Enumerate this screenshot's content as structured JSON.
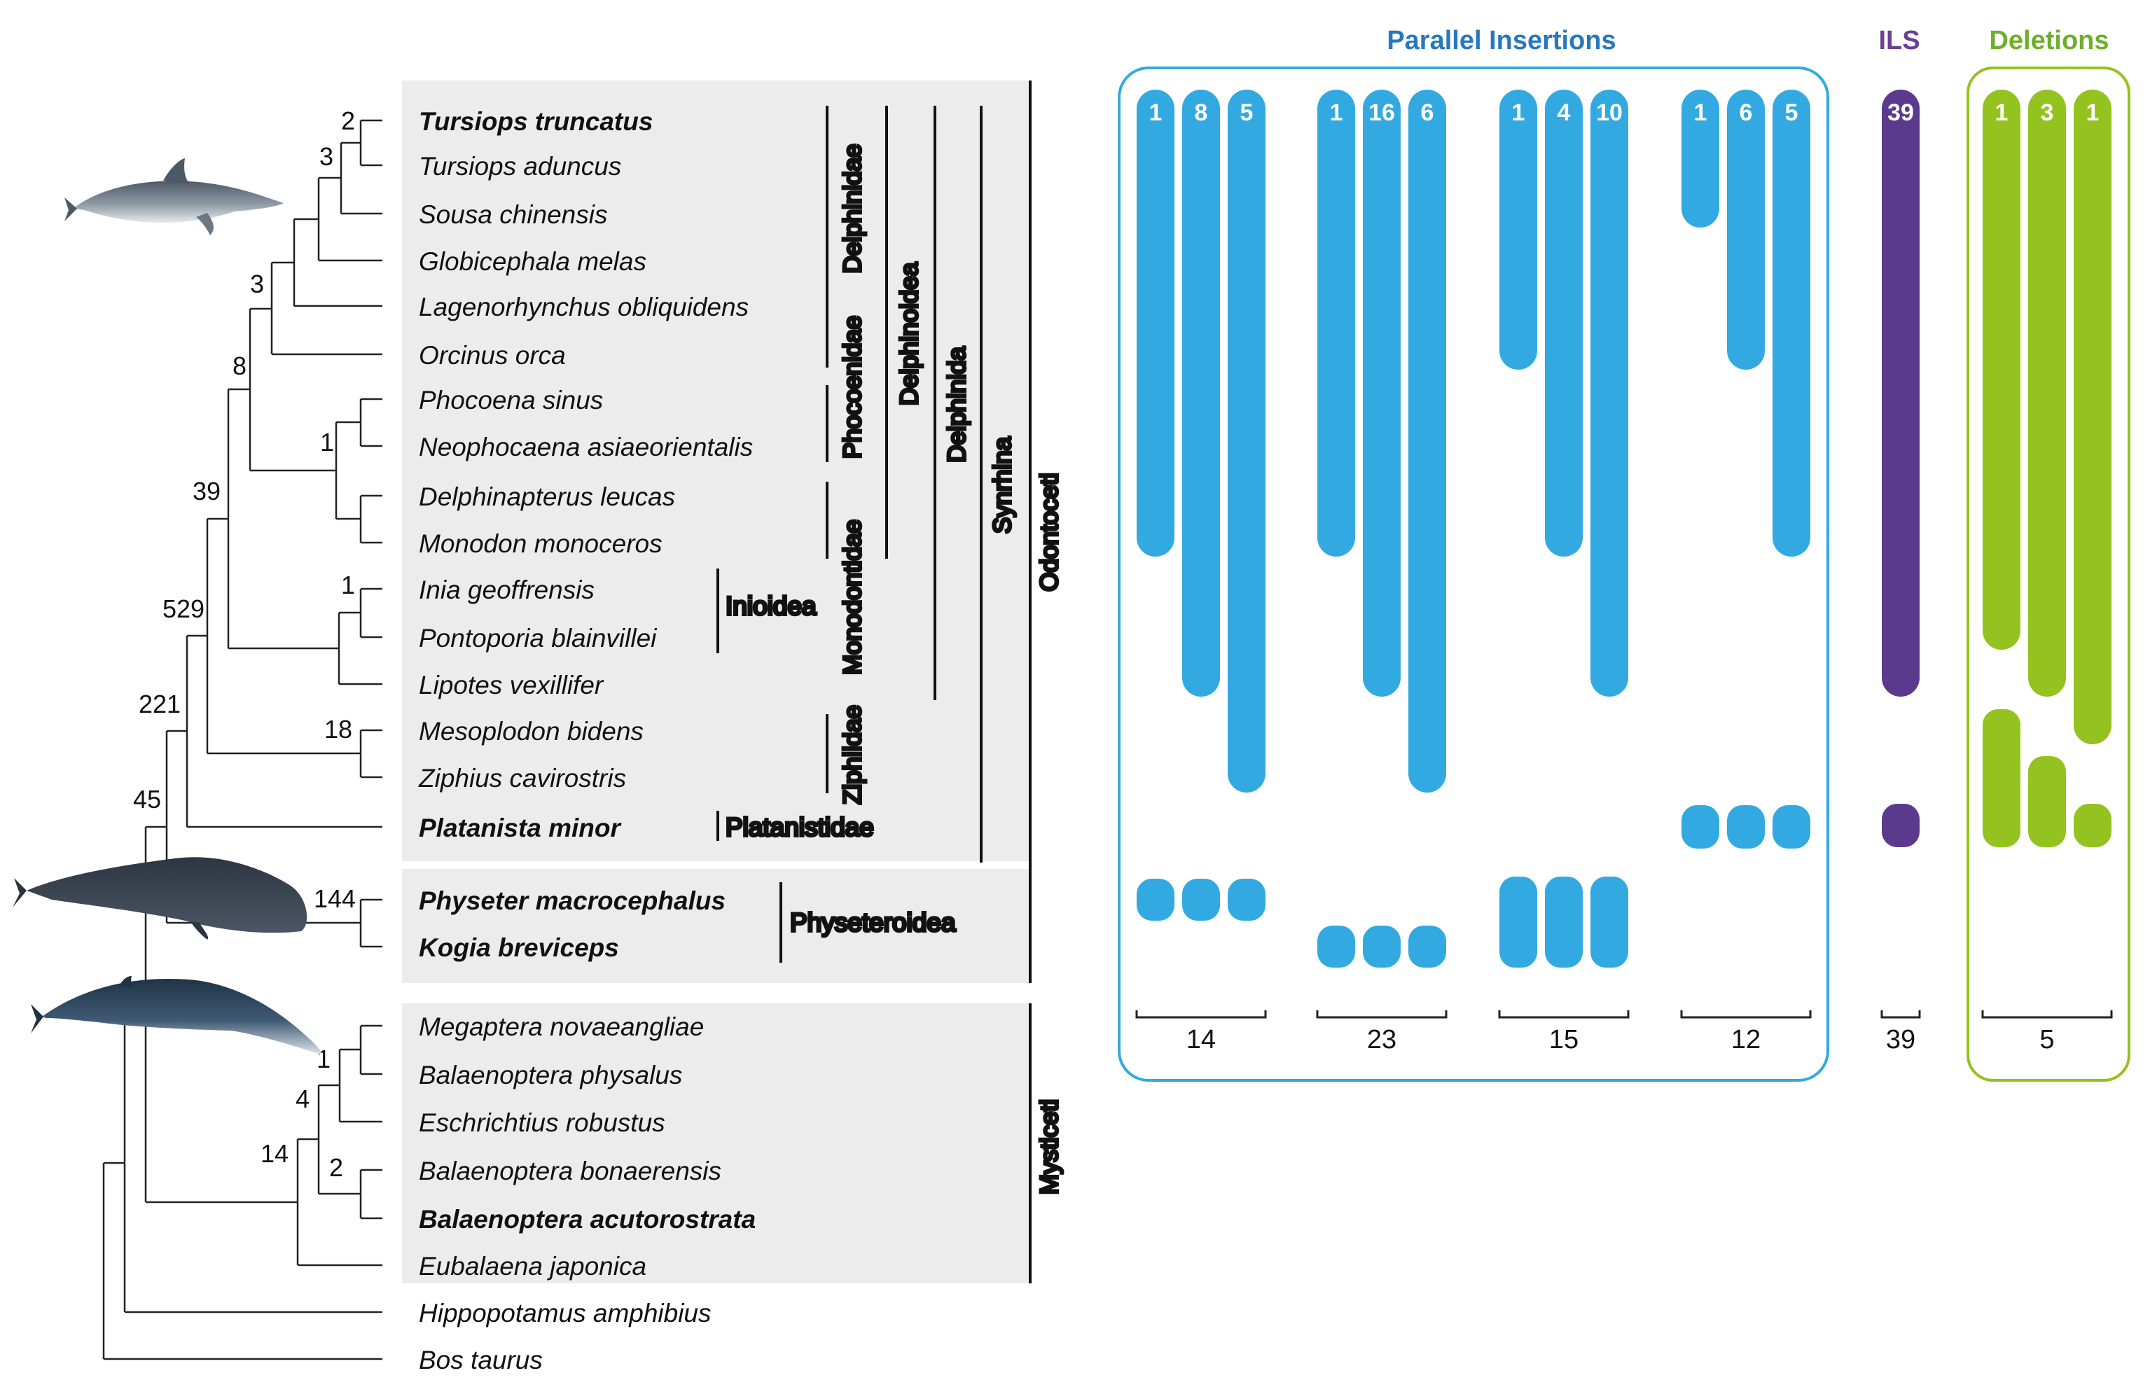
{
  "colors": {
    "insertions": "#33a9e1",
    "ils": "#5b3a8e",
    "deletions": "#94c21f",
    "panel": "#ececec",
    "tree": "#222222"
  },
  "species": [
    {
      "name": "Tursiops truncatus",
      "bold": true
    },
    {
      "name": "Tursiops aduncus",
      "bold": false
    },
    {
      "name": "Sousa chinensis",
      "bold": false
    },
    {
      "name": "Globicephala melas",
      "bold": false
    },
    {
      "name": "Lagenorhynchus obliquidens",
      "bold": false
    },
    {
      "name": "Orcinus orca",
      "bold": false
    },
    {
      "name": "Phocoena sinus",
      "bold": false
    },
    {
      "name": "Neophocaena asiaeorientalis",
      "bold": false
    },
    {
      "name": "Delphinapterus leucas",
      "bold": false
    },
    {
      "name": "Monodon monoceros",
      "bold": false
    },
    {
      "name": "Inia geoffrensis",
      "bold": false
    },
    {
      "name": "Pontoporia blainvillei",
      "bold": false
    },
    {
      "name": "Lipotes vexillifer",
      "bold": false
    },
    {
      "name": "Mesoplodon bidens",
      "bold": false
    },
    {
      "name": "Ziphius cavirostris",
      "bold": false
    },
    {
      "name": "Platanista minor",
      "bold": true
    },
    {
      "name": "Physeter macrocephalus",
      "bold": true
    },
    {
      "name": "Kogia breviceps",
      "bold": true
    },
    {
      "name": "Megaptera novaeangliae",
      "bold": false
    },
    {
      "name": "Balaenoptera physalus",
      "bold": false
    },
    {
      "name": "Eschrichtius robustus",
      "bold": false
    },
    {
      "name": "Balaenoptera bonaerensis",
      "bold": false
    },
    {
      "name": "Balaenoptera acutorostrata",
      "bold": true
    },
    {
      "name": "Eubalaena japonica",
      "bold": false
    },
    {
      "name": "Hippopotamus amphibius",
      "bold": false
    },
    {
      "name": "Bos taurus",
      "bold": false
    }
  ],
  "node_support": [
    "2",
    "3",
    "3",
    "8",
    "1",
    "39",
    "1",
    "529",
    "18",
    "221",
    "45",
    "144",
    "1",
    "4",
    "2",
    "14"
  ],
  "family_labels": {
    "delphinidae": "Delphinidae",
    "phocoenidae": "Phocoenidae",
    "monodontidae": "Monodontidae",
    "ziphiidae": "Ziphiidae",
    "inioidea": "Inioidea",
    "platanistidae": "Platanistidae",
    "physeteroidea": "Physeteroidea",
    "delphinoidea": "Delphinoidea",
    "delphinida": "Delphinida",
    "synrhina": "Synrhina",
    "odontoceti": "Odontoceti",
    "mysticeti": "Mysticeti"
  },
  "sections": {
    "parallel_insertions": "Parallel Insertions",
    "ils": "ILS",
    "deletions": "Deletions"
  },
  "insertion_groups": [
    {
      "total": "14",
      "bars": [
        "1",
        "8",
        "5"
      ]
    },
    {
      "total": "23",
      "bars": [
        "1",
        "16",
        "6"
      ]
    },
    {
      "total": "15",
      "bars": [
        "1",
        "4",
        "10"
      ]
    },
    {
      "total": "12",
      "bars": [
        "1",
        "6",
        "5"
      ]
    }
  ],
  "ils_group": {
    "total": "39",
    "bars": [
      "39"
    ]
  },
  "deletion_group": {
    "total": "5",
    "bars": [
      "1",
      "3",
      "1"
    ]
  },
  "animals": [
    "bottlenose-dolphin",
    "sperm-whale",
    "minke-whale"
  ]
}
